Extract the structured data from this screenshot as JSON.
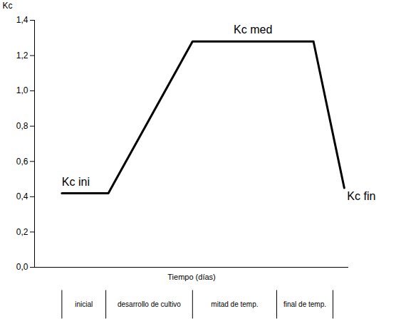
{
  "chart_data": {
    "type": "line",
    "x_label": "Tiempo (días)",
    "y_label": "Kc",
    "xlim": [
      0,
      100
    ],
    "ylim": [
      0,
      1.4
    ],
    "yticks": [
      {
        "value": 0,
        "label": "0,0"
      },
      {
        "value": 0.2,
        "label": "0,2"
      },
      {
        "value": 0.4,
        "label": "0,4"
      },
      {
        "value": 0.6,
        "label": "0,6"
      },
      {
        "value": 0.8,
        "label": "0,8"
      },
      {
        "value": 1.0,
        "label": "1,0"
      },
      {
        "value": 1.2,
        "label": "1,2"
      },
      {
        "value": 1.4,
        "label": "1,4"
      }
    ],
    "tick_labels": "y",
    "grid": false,
    "color": "#000000",
    "x": [
      8.7,
      23.5,
      50.3,
      88.8,
      98.6
    ],
    "values": [
      0.42,
      0.42,
      1.28,
      1.28,
      0.45
    ],
    "annotations": [
      "Kc ini",
      "Kc med",
      "Kc fin"
    ],
    "stages": [
      {
        "label": "inicial",
        "start": 8.7,
        "end": 22.7
      },
      {
        "label": "desarrollo de cultivo",
        "start": 22.7,
        "end": 50.3
      },
      {
        "label": "mitad de temp.",
        "start": 50.3,
        "end": 77.1
      },
      {
        "label": "final de temp.",
        "start": 77.1,
        "end": 95.0
      }
    ]
  }
}
